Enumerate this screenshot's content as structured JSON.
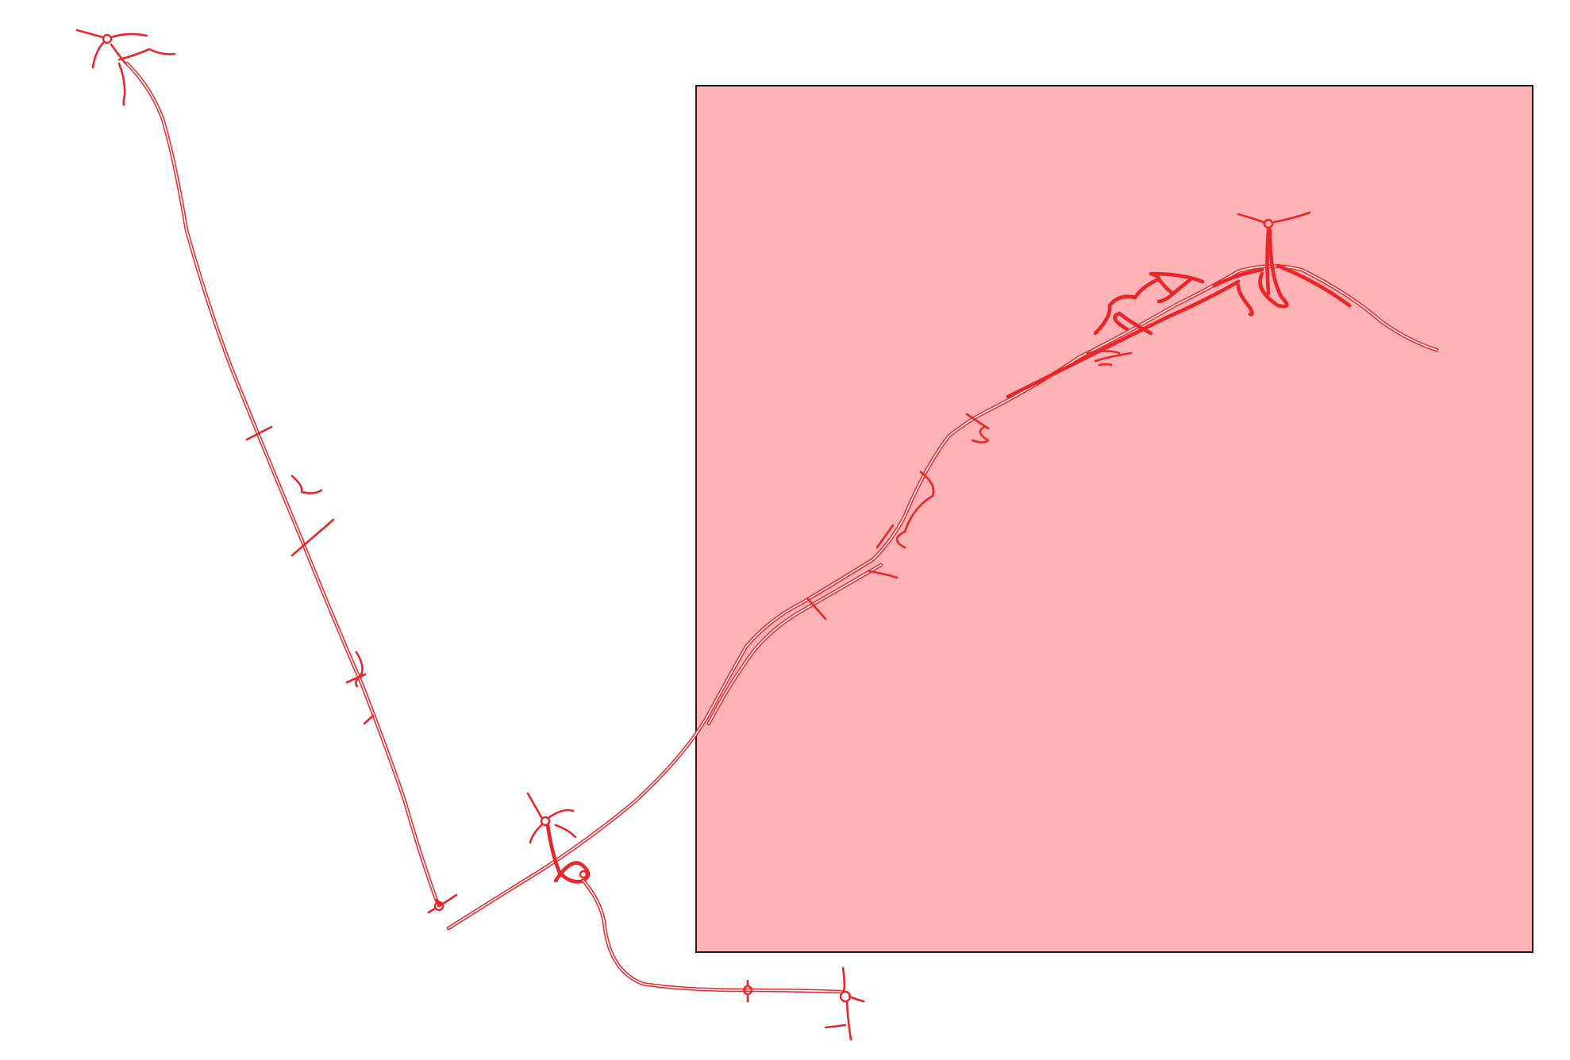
{
  "map": {
    "background_color": "#ffffff",
    "road_color": "#e8262b",
    "area_fill_color": "#ffb3b4",
    "area_border_color": "#1a1a1a"
  }
}
